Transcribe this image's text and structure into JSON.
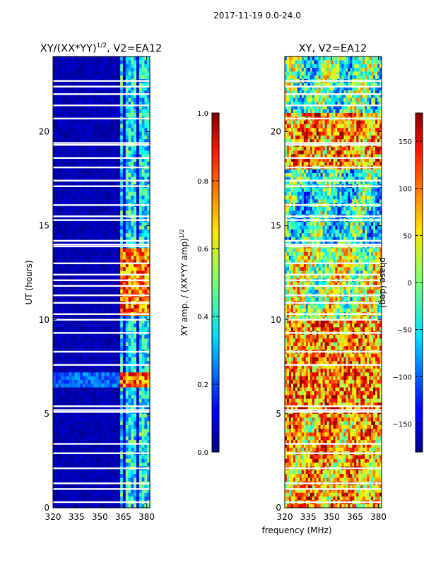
{
  "chart_data": [
    {
      "type": "heatmap",
      "suptitle": "2017-11-19 0.0-24.0",
      "title": "XY/(XX*YY)",
      "title_sup": "1/2",
      "title_suffix": ", V2=EA12",
      "ylabel": "UT (hours)",
      "xlim": [
        320,
        382
      ],
      "ylim": [
        0,
        24
      ],
      "xticks": [
        320,
        335,
        350,
        365,
        380
      ],
      "yticks": [
        0,
        5,
        10,
        15,
        20
      ],
      "colorbar": {
        "label": "XY amp. / (XX*YY amp)",
        "label_sup": "1/2",
        "range": [
          0.0,
          1.0
        ],
        "ticks": [
          "0.0",
          "0.2",
          "0.4",
          "0.6",
          "0.8",
          "1.0"
        ],
        "ticks_values": [
          0.0,
          0.2,
          0.4,
          0.6,
          0.8,
          1.0
        ]
      },
      "bright_band_mhz": [
        363,
        382
      ],
      "flagged_hours": [
        0.3,
        1.0,
        1.3,
        2.1,
        2.9,
        3.4,
        5.1,
        5.2,
        5.4,
        7.6,
        8.3,
        9.3,
        10.0,
        10.3,
        10.9,
        11.3,
        11.8,
        12.1,
        12.4,
        13.0,
        13.9,
        14.0,
        14.2,
        15.3,
        15.5,
        16.1,
        17.1,
        17.4,
        18.1,
        18.6,
        19.3,
        19.4,
        20.7,
        21.4,
        22.0,
        22.4,
        22.7
      ]
    },
    {
      "type": "heatmap",
      "title": "XY, V2=EA12",
      "xlabel": "frequency (MHz)",
      "xlim": [
        320,
        382
      ],
      "ylim": [
        0,
        24
      ],
      "xticks": [
        320,
        335,
        350,
        365,
        380
      ],
      "yticks": [
        0,
        5,
        10,
        15,
        20
      ],
      "colorbar": {
        "label": "phase (deg)",
        "range": [
          -180,
          180
        ],
        "ticks": [
          "−150",
          "−100",
          "−50",
          "0",
          "50",
          "100",
          "150"
        ],
        "ticks_values": [
          -150,
          -100,
          -50,
          0,
          50,
          100,
          150
        ]
      },
      "flagged_hours": [
        0.3,
        1.0,
        1.3,
        2.1,
        2.9,
        3.4,
        5.1,
        5.2,
        5.4,
        7.6,
        8.3,
        9.3,
        10.0,
        10.3,
        10.9,
        11.3,
        11.8,
        12.1,
        12.4,
        13.0,
        13.9,
        14.0,
        14.2,
        15.3,
        15.5,
        16.1,
        17.1,
        17.4,
        18.1,
        18.6,
        19.3,
        19.4,
        20.7,
        21.4,
        22.0,
        22.4,
        22.7
      ]
    }
  ]
}
